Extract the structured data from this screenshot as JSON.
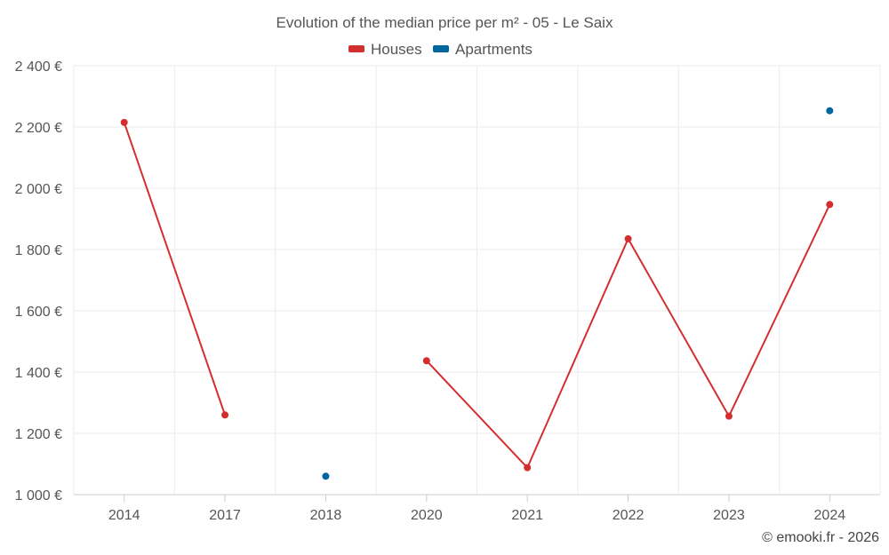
{
  "chart_data": {
    "type": "line",
    "title": "Evolution of the median price per m² - 05 - Le Saix",
    "categories": [
      "2014",
      "2017",
      "2018",
      "2020",
      "2021",
      "2022",
      "2023",
      "2024"
    ],
    "series": [
      {
        "name": "Houses",
        "color": "#d32f2f",
        "values": [
          2215,
          1260,
          null,
          1437,
          1088,
          1835,
          1256,
          1947
        ]
      },
      {
        "name": "Apartments",
        "color": "#0066a1",
        "values": [
          null,
          null,
          1060,
          null,
          null,
          null,
          null,
          2253
        ]
      }
    ],
    "ylim": [
      1000,
      2400
    ],
    "yticks": [
      1000,
      1200,
      1400,
      1600,
      1800,
      2000,
      2200,
      2400
    ],
    "ytick_labels": [
      "1 000 €",
      "1 200 €",
      "1 400 €",
      "1 600 €",
      "1 800 €",
      "2 000 €",
      "2 200 €",
      "2 400 €"
    ],
    "xlabel": "",
    "ylabel": "",
    "legend_position": "top-center",
    "grid": true
  },
  "credit": "© emooki.fr - 2026"
}
